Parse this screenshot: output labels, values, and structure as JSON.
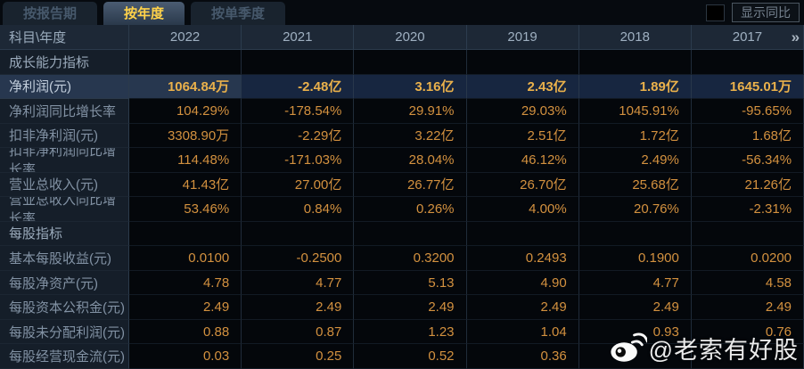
{
  "tabs": [
    {
      "label": "按报告期",
      "active": false
    },
    {
      "label": "按年度",
      "active": true
    },
    {
      "label": "按单季度",
      "active": false
    }
  ],
  "toolbar": {
    "show_yoy_label": "显示同比",
    "checkbox_checked": false
  },
  "table": {
    "corner_label": "科目\\年度",
    "years": [
      "2022",
      "2021",
      "2020",
      "2019",
      "2018",
      "2017"
    ],
    "more_icon": "»",
    "rows": [
      {
        "type": "section",
        "label": "成长能力指标"
      },
      {
        "type": "data",
        "label": "净利润(元)",
        "highlight": true,
        "values": [
          "1064.84万",
          "-2.48亿",
          "3.16亿",
          "2.43亿",
          "1.89亿",
          "1645.01万"
        ]
      },
      {
        "type": "data",
        "label": "净利润同比增长率",
        "values": [
          "104.29%",
          "-178.54%",
          "29.91%",
          "29.03%",
          "1045.91%",
          "-95.65%"
        ]
      },
      {
        "type": "data",
        "label": "扣非净利润(元)",
        "values": [
          "3308.90万",
          "-2.29亿",
          "3.22亿",
          "2.51亿",
          "1.72亿",
          "1.68亿"
        ]
      },
      {
        "type": "data",
        "label": "扣非净利润同比增长率",
        "values": [
          "114.48%",
          "-171.03%",
          "28.04%",
          "46.12%",
          "2.49%",
          "-56.34%"
        ]
      },
      {
        "type": "data",
        "label": "营业总收入(元)",
        "values": [
          "41.43亿",
          "27.00亿",
          "26.77亿",
          "26.70亿",
          "25.68亿",
          "21.26亿"
        ]
      },
      {
        "type": "data",
        "label": "营业总收入同比增长率",
        "values": [
          "53.46%",
          "0.84%",
          "0.26%",
          "4.00%",
          "20.76%",
          "-2.31%"
        ]
      },
      {
        "type": "section",
        "label": "每股指标"
      },
      {
        "type": "data",
        "label": "基本每股收益(元)",
        "values": [
          "0.0100",
          "-0.2500",
          "0.3200",
          "0.2493",
          "0.1900",
          "0.0200"
        ]
      },
      {
        "type": "data",
        "label": "每股净资产(元)",
        "values": [
          "4.78",
          "4.77",
          "5.13",
          "4.90",
          "4.77",
          "4.58"
        ]
      },
      {
        "type": "data",
        "label": "每股资本公积金(元)",
        "values": [
          "2.49",
          "2.49",
          "2.49",
          "2.49",
          "2.49",
          "2.49"
        ]
      },
      {
        "type": "data",
        "label": "每股未分配利润(元)",
        "values": [
          "0.88",
          "0.87",
          "1.23",
          "1.04",
          "0.93",
          "0.76"
        ]
      },
      {
        "type": "data",
        "label": "每股经营现金流(元)",
        "values": [
          "0.03",
          "0.25",
          "0.52",
          "0.36",
          "",
          ""
        ]
      }
    ]
  },
  "watermark": {
    "icon": "weibo-logo",
    "text": "@老索有好股"
  },
  "colors": {
    "accent_gold": "#ffd24a",
    "value_orange": "#d3913f",
    "highlight_value_gold": "#eab14b",
    "highlight_row_bg": "#172640",
    "header_bg": "#1d2836",
    "label_col_bg": "#151e29",
    "data_cell_bg": "#04070b"
  }
}
